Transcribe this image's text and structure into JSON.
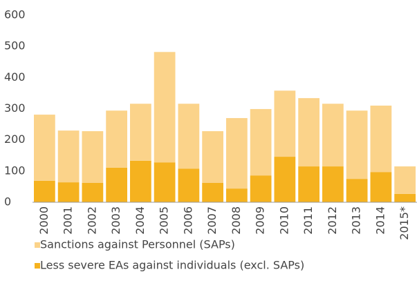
{
  "chart_data": {
    "type": "stacked_bar",
    "categories": [
      "2000",
      "2001",
      "2002",
      "2003",
      "2004",
      "2005",
      "2006",
      "2007",
      "2008",
      "2009",
      "2010",
      "2011",
      "2012",
      "2013",
      "2014",
      "2015*"
    ],
    "series": [
      {
        "name": "Sanctions against Personnel (SAPs)",
        "color": "#fbd38a",
        "values": [
          212,
          166,
          166,
          183,
          183,
          354,
          208,
          166,
          226,
          213,
          212,
          219,
          201,
          219,
          213,
          88
        ]
      },
      {
        "name": "Less severe EAs against individuals (excl. SAPs)",
        "color": "#f5b21f",
        "values": [
          69,
          64,
          62,
          111,
          133,
          128,
          108,
          62,
          44,
          86,
          146,
          115,
          115,
          75,
          97,
          27
        ]
      }
    ],
    "ylim": [
      0,
      600
    ],
    "yticks": [
      0,
      100,
      200,
      300,
      400,
      500,
      600
    ],
    "grid": false
  }
}
